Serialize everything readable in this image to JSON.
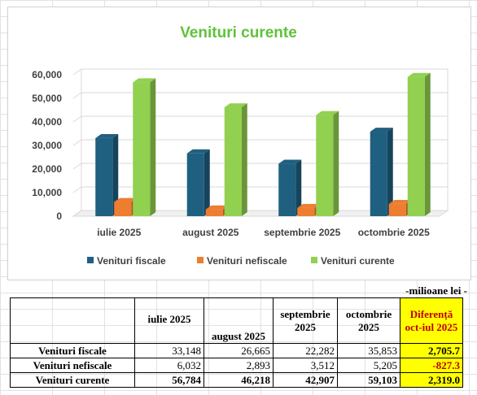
{
  "chart_data": {
    "type": "bar",
    "title": "Venituri curente",
    "categories": [
      "iulie 2025",
      "august 2025",
      "septembrie 2025",
      "octombrie 2025"
    ],
    "series": [
      {
        "name": "Venituri fiscale",
        "values": [
          33148,
          26665,
          22282,
          35853
        ],
        "color": "#1f5f80"
      },
      {
        "name": "Venituri nefiscale",
        "values": [
          6032,
          2893,
          3512,
          5205
        ],
        "color": "#ed7d31"
      },
      {
        "name": "Venituri curente",
        "values": [
          56784,
          46218,
          42907,
          59103
        ],
        "color": "#92d050"
      }
    ],
    "yticks": [
      "0",
      "10,000",
      "20,000",
      "30,000",
      "40,000",
      "50,000",
      "60,000"
    ],
    "ylim": [
      0,
      60000
    ],
    "legend": "bottom",
    "grid": true
  },
  "table": {
    "unit_note": "-milioane lei -",
    "headers": [
      "",
      "iulie 2025",
      "august 2025",
      "septembrie 2025",
      "octombrie 2025",
      "Diferență oct-iul 2025"
    ],
    "rows": [
      {
        "label": "Venituri fiscale",
        "cells": [
          "33,148",
          "26,665",
          "22,282",
          "35,853"
        ],
        "diff": "2,705.7"
      },
      {
        "label": "Venituri nefiscale",
        "cells": [
          "6,032",
          "2,893",
          "3,512",
          "5,205"
        ],
        "diff": "-827.3"
      },
      {
        "label": "Venituri curente",
        "cells": [
          "56,784",
          "46,218",
          "42,907",
          "59,103"
        ],
        "diff": "2,319.0"
      }
    ],
    "colors": {
      "highlight": "#ffff00",
      "negative": "#c00000"
    }
  }
}
